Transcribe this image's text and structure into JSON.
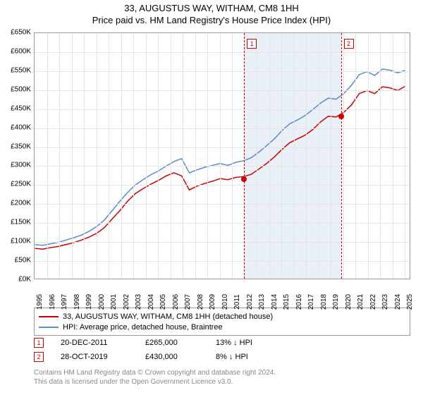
{
  "title": {
    "main": "33, AUGUSTUS WAY, WITHAM, CM8 1HH",
    "sub": "Price paid vs. HM Land Registry's House Price Index (HPI)"
  },
  "chart": {
    "type": "line",
    "background_color": "#ffffff",
    "grid_color": "#e5e5e5",
    "border_color": "#999999",
    "x_years": [
      1995,
      1996,
      1997,
      1998,
      1999,
      2000,
      2001,
      2002,
      2003,
      2004,
      2005,
      2006,
      2007,
      2008,
      2009,
      2010,
      2011,
      2012,
      2013,
      2014,
      2015,
      2016,
      2017,
      2018,
      2019,
      2020,
      2021,
      2022,
      2023,
      2024,
      2025
    ],
    "xlim": [
      1995,
      2025.5
    ],
    "ylim": [
      0,
      650
    ],
    "ytick_step": 50,
    "ytick_prefix": "£",
    "ytick_suffix": "K",
    "label_fontsize": 10,
    "line_width": 1.5,
    "shaded_region": {
      "start": 2011.97,
      "end": 2019.82,
      "color": "#eaf0f8"
    },
    "markers": [
      {
        "label": "1",
        "x": 2011.97,
        "box_color": "#cc0000",
        "dash_color": "#cc0000"
      },
      {
        "label": "2",
        "x": 2019.82,
        "box_color": "#cc0000",
        "dash_color": "#cc0000"
      }
    ],
    "sale_points": [
      {
        "x": 2011.97,
        "y": 265,
        "color": "#cc0000"
      },
      {
        "x": 2019.82,
        "y": 430,
        "color": "#cc0000"
      }
    ],
    "series": [
      {
        "name": "33, AUGUSTUS WAY, WITHAM, CM8 1HH (detached house)",
        "color": "#cc0000",
        "data": [
          80,
          78,
          82,
          85,
          90,
          95,
          102,
          110,
          120,
          135,
          158,
          180,
          205,
          225,
          238,
          250,
          260,
          272,
          280,
          272,
          235,
          245,
          252,
          258,
          265,
          262,
          268,
          270,
          276,
          290,
          305,
          322,
          342,
          360,
          370,
          380,
          395,
          415,
          430,
          428,
          440,
          460,
          490,
          498,
          490,
          508,
          505,
          498,
          510
        ]
      },
      {
        "name": "HPI: Average price, detached house, Braintree",
        "color": "#5b8ac6",
        "data": [
          90,
          88,
          92,
          96,
          102,
          108,
          115,
          125,
          138,
          155,
          180,
          205,
          228,
          248,
          262,
          275,
          285,
          298,
          310,
          318,
          280,
          288,
          295,
          300,
          305,
          300,
          308,
          312,
          320,
          335,
          352,
          370,
          392,
          410,
          420,
          432,
          448,
          465,
          478,
          475,
          490,
          512,
          540,
          548,
          538,
          555,
          552,
          545,
          552
        ]
      }
    ]
  },
  "legend": {
    "border_color": "#999999",
    "fontsize": 11,
    "items": [
      {
        "color": "#cc0000",
        "label": "33, AUGUSTUS WAY, WITHAM, CM8 1HH (detached house)"
      },
      {
        "color": "#5b8ac6",
        "label": "HPI: Average price, detached house, Braintree"
      }
    ]
  },
  "sales": [
    {
      "marker": "1",
      "date": "20-DEC-2011",
      "price": "£265,000",
      "diff": "13% ↓ HPI"
    },
    {
      "marker": "2",
      "date": "28-OCT-2019",
      "price": "£430,000",
      "diff": "8% ↓ HPI"
    }
  ],
  "footer": {
    "line1": "Contains HM Land Registry data © Crown copyright and database right 2024.",
    "line2": "This data is licensed under the Open Government Licence v3.0."
  }
}
